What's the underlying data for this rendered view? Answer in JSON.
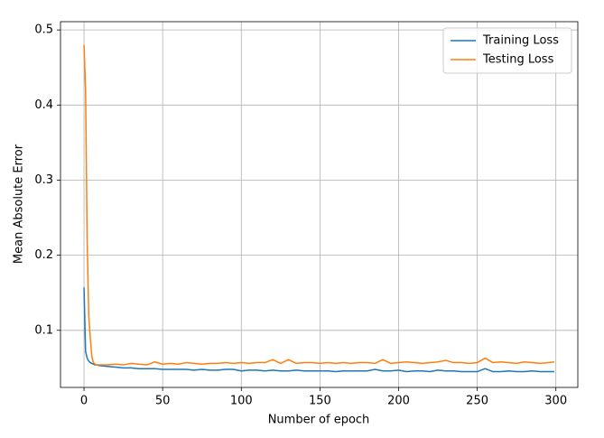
{
  "chart_data": {
    "type": "line",
    "xlabel": "Number of epoch",
    "ylabel": "Mean Absolute Error",
    "x": [
      0,
      1,
      2,
      3,
      4,
      5,
      6,
      7,
      8,
      10,
      15,
      20,
      25,
      30,
      35,
      40,
      45,
      50,
      55,
      60,
      65,
      70,
      75,
      80,
      85,
      90,
      95,
      100,
      105,
      110,
      115,
      120,
      125,
      130,
      135,
      140,
      145,
      150,
      155,
      160,
      165,
      170,
      175,
      180,
      185,
      190,
      195,
      200,
      205,
      210,
      215,
      220,
      225,
      230,
      235,
      240,
      245,
      250,
      255,
      260,
      265,
      270,
      275,
      280,
      285,
      290,
      295,
      299
    ],
    "series": [
      {
        "name": "Training Loss",
        "color": "#1f77b4",
        "values": [
          0.157,
          0.072,
          0.063,
          0.059,
          0.057,
          0.056,
          0.055,
          0.054,
          0.054,
          0.053,
          0.052,
          0.051,
          0.05,
          0.05,
          0.049,
          0.049,
          0.049,
          0.048,
          0.048,
          0.048,
          0.048,
          0.047,
          0.048,
          0.047,
          0.047,
          0.048,
          0.048,
          0.046,
          0.047,
          0.047,
          0.046,
          0.047,
          0.046,
          0.046,
          0.047,
          0.046,
          0.046,
          0.046,
          0.046,
          0.045,
          0.046,
          0.046,
          0.046,
          0.046,
          0.048,
          0.046,
          0.046,
          0.047,
          0.045,
          0.046,
          0.046,
          0.045,
          0.047,
          0.046,
          0.046,
          0.045,
          0.045,
          0.045,
          0.049,
          0.045,
          0.045,
          0.046,
          0.045,
          0.045,
          0.046,
          0.045,
          0.045,
          0.045
        ]
      },
      {
        "name": "Testing Loss",
        "color": "#ff7f0e",
        "values": [
          0.48,
          0.42,
          0.22,
          0.12,
          0.09,
          0.065,
          0.057,
          0.055,
          0.054,
          0.054,
          0.054,
          0.055,
          0.054,
          0.056,
          0.055,
          0.054,
          0.058,
          0.055,
          0.056,
          0.055,
          0.057,
          0.056,
          0.055,
          0.056,
          0.056,
          0.057,
          0.056,
          0.057,
          0.056,
          0.057,
          0.057,
          0.061,
          0.056,
          0.061,
          0.056,
          0.057,
          0.057,
          0.056,
          0.057,
          0.056,
          0.057,
          0.056,
          0.057,
          0.057,
          0.056,
          0.061,
          0.056,
          0.057,
          0.058,
          0.057,
          0.056,
          0.057,
          0.058,
          0.06,
          0.057,
          0.057,
          0.056,
          0.057,
          0.063,
          0.057,
          0.058,
          0.057,
          0.056,
          0.058,
          0.057,
          0.056,
          0.057,
          0.058
        ]
      }
    ],
    "xlim": [
      -14.95,
      313.95
    ],
    "xticks": [
      0,
      50,
      100,
      150,
      200,
      250,
      300
    ],
    "ylim": [
      0.024,
      0.511
    ],
    "yticks": [
      0.1,
      0.2,
      0.3,
      0.4,
      0.5
    ],
    "grid": true,
    "legend": "upper right"
  }
}
